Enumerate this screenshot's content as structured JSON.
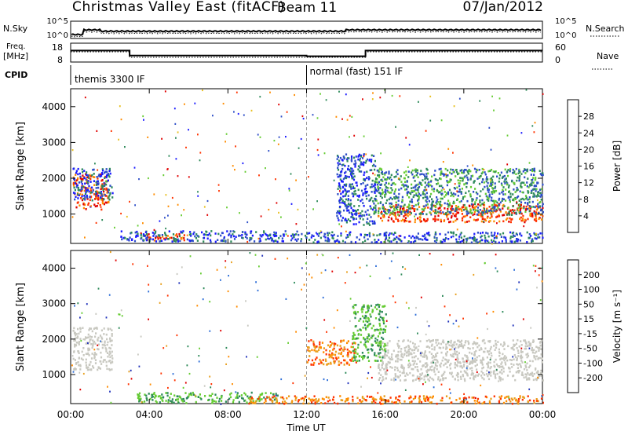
{
  "header": {
    "title": "Christmas Valley East (fitACF)",
    "beam": "Beam 11",
    "date": "07/Jan/2012"
  },
  "noise_panel": {
    "left_label": "N.Sky",
    "right_label": "N.Search",
    "left_ticks": [
      "10^5",
      "10^0"
    ],
    "right_ticks": [
      "10^5",
      "10^0"
    ]
  },
  "freq_panel": {
    "left_label_1": "Freq.",
    "left_label_2": "[MHz]",
    "right_label": "Nave",
    "left_ticks": [
      "18",
      "8"
    ],
    "right_ticks": [
      "60",
      "0"
    ]
  },
  "cpid": {
    "label": "CPID",
    "modes": [
      "themis 3300 IF",
      "normal (fast) 151 IF"
    ]
  },
  "x_axis": {
    "label": "Time UT",
    "ticks": [
      "00:00",
      "04:00",
      "08:00",
      "12:00",
      "16:00",
      "20:00",
      "00:00"
    ]
  },
  "y_axis": {
    "label": "Slant Range [km]",
    "ticks": [
      "1000",
      "2000",
      "3000",
      "4000"
    ]
  },
  "power_colorbar": {
    "label": "Power [dB]",
    "ticks": [
      "4",
      "8",
      "12",
      "16",
      "20",
      "24",
      "28"
    ],
    "colors": [
      "#1a1aff",
      "#2f4fc8",
      "#2e8a5a",
      "#66cc33",
      "#e8c020",
      "#ff8c00",
      "#ff3300",
      "#e00000"
    ]
  },
  "velocity_colorbar": {
    "label": "Velocity [m s⁻¹]",
    "ticks": [
      "200",
      "100",
      "50",
      "15",
      "-15",
      "-50",
      "-100",
      "-200"
    ],
    "colors": [
      "#2233bb",
      "#2f6fd8",
      "#2e8a5a",
      "#66cc33",
      "#c8c8c0",
      "#e8a020",
      "#ff8c00",
      "#ff3300",
      "#e00000"
    ]
  },
  "chart_data": {
    "type": "heatmap",
    "title": "Christmas Valley East (fitACF)",
    "xlabel": "Time UT",
    "ylabel": "Slant Range [km]",
    "xlim": [
      0,
      24
    ],
    "ylim": [
      180,
      4500
    ],
    "mode_change_hours": [
      3,
      15
    ],
    "cpid_change_hour": 12,
    "freq_steps": [
      {
        "from": 0,
        "to": 3,
        "mhz": 14
      },
      {
        "from": 3,
        "to": 12,
        "mhz": 10
      },
      {
        "from": 12,
        "to": 15,
        "mhz": 9.5
      },
      {
        "from": 15,
        "to": 24,
        "mhz": 14
      }
    ],
    "power_features": [
      {
        "t0": 0.1,
        "t1": 1.9,
        "r0": 1150,
        "r1": 2150,
        "level": "red"
      },
      {
        "t0": 0.1,
        "t1": 2.1,
        "r0": 1400,
        "r1": 2300,
        "level": "blue"
      },
      {
        "t0": 3.7,
        "t1": 5.8,
        "r0": 290,
        "r1": 470,
        "level": "red"
      },
      {
        "t0": 2.5,
        "t1": 12,
        "r0": 250,
        "r1": 550,
        "level": "blue"
      },
      {
        "t0": 12,
        "t1": 24,
        "r0": 230,
        "r1": 520,
        "level": "blue"
      },
      {
        "t0": 15.6,
        "t1": 24,
        "r0": 800,
        "r1": 1300,
        "level": "red"
      },
      {
        "t0": 15.4,
        "t1": 24,
        "r0": 1000,
        "r1": 2300,
        "level": "green"
      },
      {
        "t0": 13.5,
        "t1": 15.5,
        "r0": 700,
        "r1": 2700,
        "level": "blue"
      }
    ],
    "velocity_features": [
      {
        "t0": 0.1,
        "t1": 2.1,
        "r0": 1150,
        "r1": 2350,
        "level": "grey"
      },
      {
        "t0": 3.3,
        "t1": 10.5,
        "r0": 220,
        "r1": 520,
        "level": "green"
      },
      {
        "t0": 9,
        "t1": 24,
        "r0": 200,
        "r1": 420,
        "level": "orange"
      },
      {
        "t0": 15.6,
        "t1": 24,
        "r0": 850,
        "r1": 2000,
        "level": "grey"
      },
      {
        "t0": 12,
        "t1": 14.5,
        "r0": 1300,
        "r1": 2000,
        "level": "orange"
      },
      {
        "t0": 14.3,
        "t1": 16,
        "r0": 1400,
        "r1": 3000,
        "level": "green"
      }
    ]
  }
}
